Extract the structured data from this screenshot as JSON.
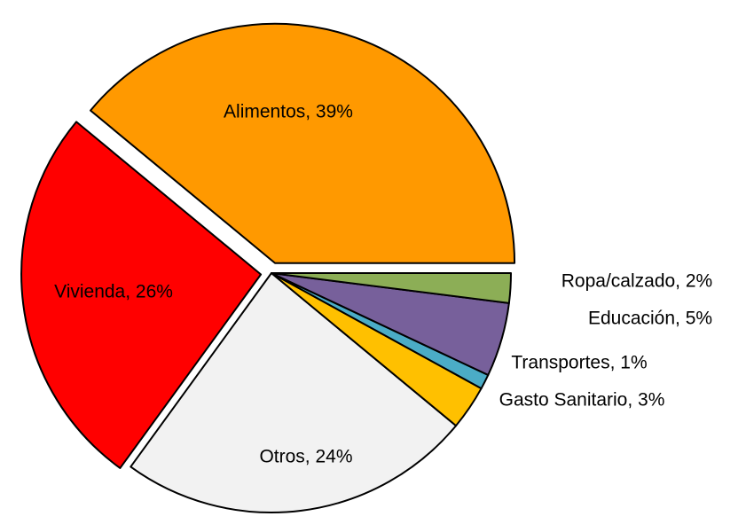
{
  "chart_data": {
    "type": "pie",
    "values": [
      39,
      26,
      24,
      3,
      1,
      5,
      2
    ],
    "value_labels": [
      "Alimentos, 39%",
      "Vivienda, 26%",
      "Otros, 24%",
      "Gasto Sanitario, 3%",
      "Transportes, 1%",
      "Educación, 5%",
      "Ropa/calzado, 2%"
    ],
    "colors": [
      "#ff9900",
      "#ff0000",
      "#f2f2f2",
      "#ffc000",
      "#4bacc6",
      "#77609b",
      "#8cae56"
    ]
  }
}
